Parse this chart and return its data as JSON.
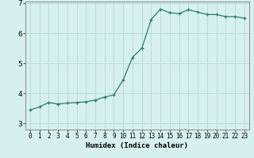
{
  "x": [
    0,
    1,
    2,
    3,
    4,
    5,
    6,
    7,
    8,
    9,
    10,
    11,
    12,
    13,
    14,
    15,
    16,
    17,
    18,
    19,
    20,
    21,
    22,
    23
  ],
  "y": [
    3.45,
    3.55,
    3.7,
    3.65,
    3.68,
    3.7,
    3.72,
    3.78,
    3.88,
    3.95,
    4.45,
    5.2,
    5.5,
    6.45,
    6.8,
    6.68,
    6.65,
    6.78,
    6.7,
    6.62,
    6.62,
    6.55,
    6.55,
    6.5
  ],
  "line_color": "#2d7a6e",
  "marker": "+",
  "marker_size": 3,
  "background_color": "#d6f0ee",
  "grid_color": "#b8dcd8",
  "xlabel": "Humidex (Indice chaleur)",
  "ylim": [
    2.8,
    7.05
  ],
  "xlim": [
    -0.5,
    23.5
  ],
  "yticks": [
    3,
    4,
    5,
    6,
    7
  ],
  "xticks": [
    0,
    1,
    2,
    3,
    4,
    5,
    6,
    7,
    8,
    9,
    10,
    11,
    12,
    13,
    14,
    15,
    16,
    17,
    18,
    19,
    20,
    21,
    22,
    23
  ],
  "tick_labelsize": 5.5,
  "xlabel_fontsize": 6.5,
  "xlabel_fontweight": "bold",
  "ytick_labelsize": 6.5,
  "axis_color": "#555555",
  "spine_color": "#888888"
}
